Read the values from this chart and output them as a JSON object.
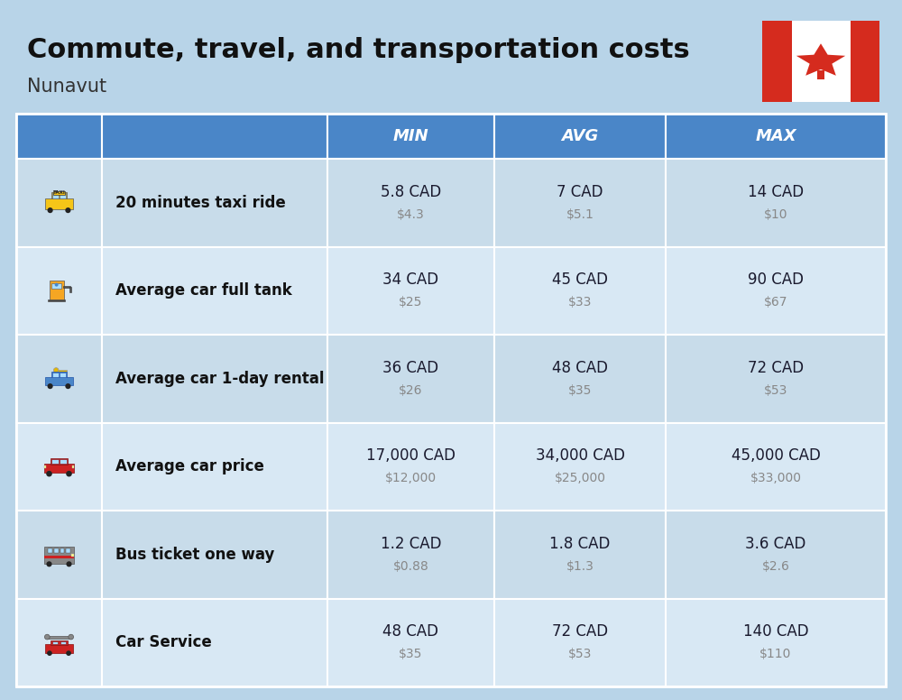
{
  "title": "Commute, travel, and transportation costs",
  "subtitle": "Nunavut",
  "bg_color": "#b8d4e8",
  "header_color": "#4a86c8",
  "row_bg_odd": "#c8dcea",
  "row_bg_even": "#d8e8f4",
  "header_text_color": "#ffffff",
  "col_headers": [
    "MIN",
    "AVG",
    "MAX"
  ],
  "rows": [
    {
      "label": "20 minutes taxi ride",
      "min_cad": "5.8 CAD",
      "min_usd": "$4.3",
      "avg_cad": "7 CAD",
      "avg_usd": "$5.1",
      "max_cad": "14 CAD",
      "max_usd": "$10"
    },
    {
      "label": "Average car full tank",
      "min_cad": "34 CAD",
      "min_usd": "$25",
      "avg_cad": "45 CAD",
      "avg_usd": "$33",
      "max_cad": "90 CAD",
      "max_usd": "$67"
    },
    {
      "label": "Average car 1-day rental",
      "min_cad": "36 CAD",
      "min_usd": "$26",
      "avg_cad": "48 CAD",
      "avg_usd": "$35",
      "max_cad": "72 CAD",
      "max_usd": "$53"
    },
    {
      "label": "Average car price",
      "min_cad": "17,000 CAD",
      "min_usd": "$12,000",
      "avg_cad": "34,000 CAD",
      "avg_usd": "$25,000",
      "max_cad": "45,000 CAD",
      "max_usd": "$33,000"
    },
    {
      "label": "Bus ticket one way",
      "min_cad": "1.2 CAD",
      "min_usd": "$0.88",
      "avg_cad": "1.8 CAD",
      "avg_usd": "$1.3",
      "max_cad": "3.6 CAD",
      "max_usd": "$2.6"
    },
    {
      "label": "Car Service",
      "min_cad": "48 CAD",
      "min_usd": "$35",
      "avg_cad": "72 CAD",
      "avg_usd": "$53",
      "max_cad": "140 CAD",
      "max_usd": "$110"
    }
  ],
  "title_fontsize": 22,
  "subtitle_fontsize": 15,
  "header_fontsize": 13,
  "label_fontsize": 12,
  "value_fontsize": 12,
  "sub_value_fontsize": 10
}
